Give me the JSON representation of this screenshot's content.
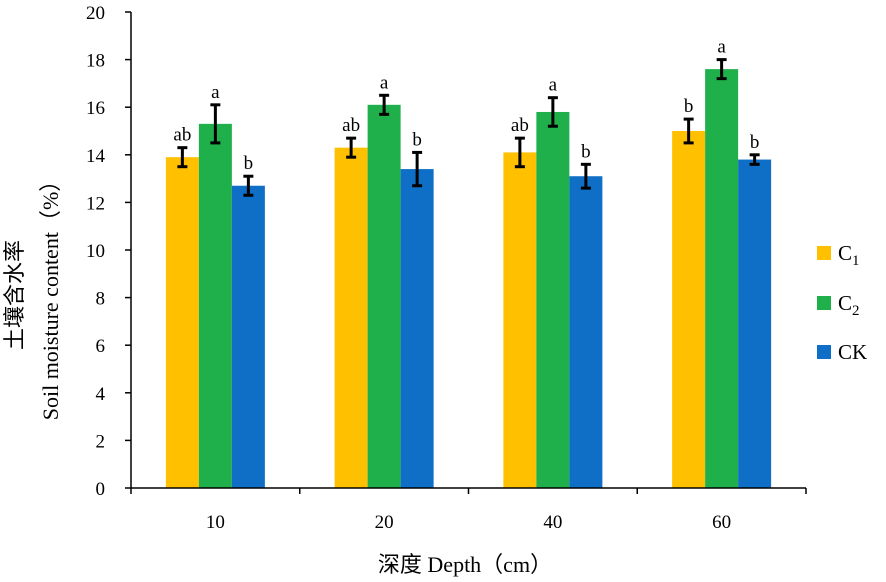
{
  "chart_data": {
    "type": "bar",
    "categories": [
      "10",
      "20",
      "40",
      "60"
    ],
    "xlabel": "深度 Depth（cm）",
    "ylabel_cn": "土壤含水率",
    "ylabel_en": "Soil moisture content（%）",
    "ylim": [
      0,
      20
    ],
    "yticks": [
      0,
      2,
      4,
      6,
      8,
      10,
      12,
      14,
      16,
      18,
      20
    ],
    "grid": false,
    "legend_position": "right",
    "series": [
      {
        "name": "C1",
        "name_main": "C",
        "name_sub": "1",
        "color": "#FFC000",
        "values": [
          13.9,
          14.3,
          14.1,
          15.0
        ],
        "errors": [
          0.4,
          0.4,
          0.6,
          0.5
        ],
        "labels": [
          "ab",
          "ab",
          "ab",
          "b"
        ]
      },
      {
        "name": "C2",
        "name_main": "C",
        "name_sub": "2",
        "color": "#1FB04B",
        "values": [
          15.3,
          16.1,
          15.8,
          17.6
        ],
        "errors": [
          0.8,
          0.4,
          0.6,
          0.4
        ],
        "labels": [
          "a",
          "a",
          "a",
          "a"
        ]
      },
      {
        "name": "CK",
        "name_main": "CK",
        "name_sub": "",
        "color": "#0F6FC6",
        "values": [
          12.7,
          13.4,
          13.1,
          13.8
        ],
        "errors": [
          0.4,
          0.7,
          0.5,
          0.2
        ],
        "labels": [
          "b",
          "b",
          "b",
          "b"
        ]
      }
    ]
  }
}
